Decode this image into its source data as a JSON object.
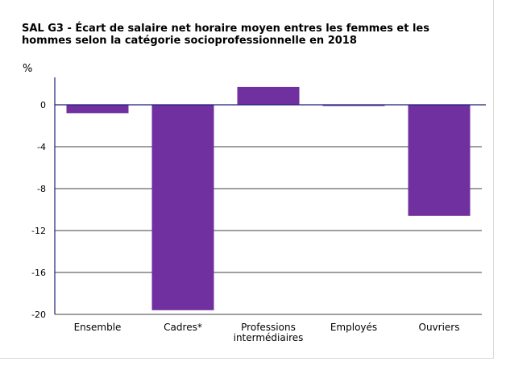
{
  "title": "SAL G3 - Écart de salaire net horaire moyen entres les femmes et les hommes selon la catégorie socioprofessionnelle en 2018",
  "unit_label": "%",
  "colors": {
    "bar": "#7030a0",
    "axis": "#1f1f7a",
    "grid": "#000000"
  },
  "chart_data": {
    "type": "bar",
    "title": "SAL G3 - Écart de salaire net horaire moyen entres les femmes et les hommes selon la catégorie socioprofessionnelle en 2018",
    "ylabel": "%",
    "xlabel": "",
    "ylim": [
      -20,
      0
    ],
    "yticks": [
      0,
      -4,
      -8,
      -12,
      -16,
      -20
    ],
    "ytick_labels": [
      "0",
      "-4",
      "-8",
      "-12",
      "-16",
      "-20"
    ],
    "grid": true,
    "categories": [
      [
        "Ensemble"
      ],
      [
        "Cadres*"
      ],
      [
        "Professions",
        "intermédiaires"
      ],
      [
        "Employés"
      ],
      [
        "Ouvriers"
      ]
    ],
    "values": [
      -0.8,
      -19.6,
      1.7,
      -0.1,
      -10.6
    ]
  }
}
